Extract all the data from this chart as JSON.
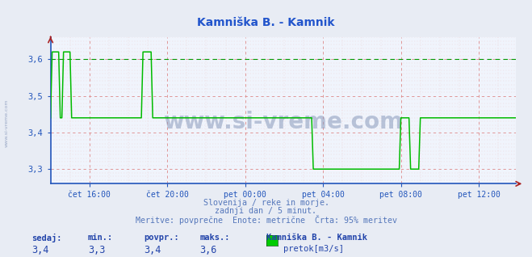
{
  "title": "Kamniška B. - Kamnik",
  "title_color": "#2255cc",
  "bg_color": "#e8ecf4",
  "plot_bg_color": "#f0f4fc",
  "grid_color_major": "#dd8888",
  "grid_color_minor": "#eecccc",
  "line_color": "#00bb00",
  "tick_color": "#2255bb",
  "border_bottom_color": "#2255bb",
  "border_right_color": "#aa2222",
  "ylim": [
    3.26,
    3.66
  ],
  "yticks": [
    3.3,
    3.4,
    3.5,
    3.6
  ],
  "ytick_labels": [
    "3,3",
    "3,4",
    "3,5",
    "3,6"
  ],
  "xtick_labels": [
    "čet 16:00",
    "čet 20:00",
    "pet 00:00",
    "pet 04:00",
    "pet 08:00",
    "pet 12:00"
  ],
  "subtitle1": "Slovenija / reke in morje.",
  "subtitle2": "zadnji dan / 5 minut.",
  "subtitle3": "Meritve: povprečne  Enote: metrične  Črta: 95% meritev",
  "subtitle_color": "#5577bb",
  "footer_label1": "sedaj:",
  "footer_label2": "min.:",
  "footer_label3": "povpr.:",
  "footer_label4": "maks.:",
  "footer_val1": "3,4",
  "footer_val2": "3,3",
  "footer_val3": "3,4",
  "footer_val4": "3,6",
  "footer_station": "Kamniška B. - Kamnik",
  "footer_legend": "pretok[m3/s]",
  "footer_color": "#2244aa",
  "watermark": "www.si-vreme.com",
  "watermark_color": "#8899bb",
  "dashed_line_y": 3.6,
  "dashed_line_color": "#009900",
  "n_points": 288,
  "sivreme_sidebar": "www.si-vreme.com"
}
